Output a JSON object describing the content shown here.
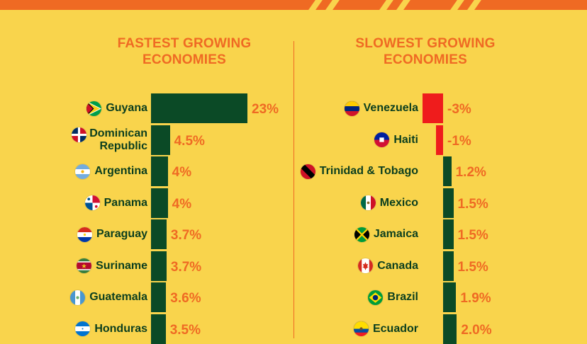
{
  "colors": {
    "background": "#f9d44c",
    "accent": "#ef6a23",
    "bar_positive": "#0b4a26",
    "bar_negative": "#ef1c1c",
    "label_text": "#0b3e1e"
  },
  "chart_data": [
    {
      "type": "bar",
      "orientation": "horizontal",
      "title_lines": [
        "FASTEST GROWING",
        "ECONOMIES"
      ],
      "unit": "%",
      "categories": [
        "Guyana",
        "Dominican Republic",
        "Argentina",
        "Panama",
        "Paraguay",
        "Suriname",
        "Guatemala",
        "Honduras"
      ],
      "label_lines": [
        [
          "Guyana"
        ],
        [
          "Dominican",
          "Republic"
        ],
        [
          "Argentina"
        ],
        [
          "Panama"
        ],
        [
          "Paraguay"
        ],
        [
          "Suriname"
        ],
        [
          "Guatemala"
        ],
        [
          "Honduras"
        ]
      ],
      "value_labels": [
        "23%",
        "4.5%",
        "4%",
        "4%",
        "3.7%",
        "3.7%",
        "3.6%",
        "3.5%"
      ],
      "values": [
        23,
        4.5,
        4,
        4,
        3.7,
        3.7,
        3.6,
        3.5
      ],
      "flag_icons": [
        "guyana-flag-icon",
        "dominican-republic-flag-icon",
        "argentina-flag-icon",
        "panama-flag-icon",
        "paraguay-flag-icon",
        "suriname-flag-icon",
        "guatemala-flag-icon",
        "honduras-flag-icon"
      ]
    },
    {
      "type": "bar",
      "orientation": "horizontal",
      "title_lines": [
        "SLOWEST GROWING",
        "ECONOMIES"
      ],
      "unit": "%",
      "categories": [
        "Venezuela",
        "Haiti",
        "Trinidad & Tobago",
        "Mexico",
        "Jamaica",
        "Canada",
        "Brazil",
        "Ecuador"
      ],
      "label_lines": [
        [
          "Venezuela"
        ],
        [
          "Haiti"
        ],
        [
          "Trinidad & Tobago"
        ],
        [
          "Mexico"
        ],
        [
          "Jamaica"
        ],
        [
          "Canada"
        ],
        [
          "Brazil"
        ],
        [
          "Ecuador"
        ]
      ],
      "value_labels": [
        "-3%",
        "-1%",
        "1.2%",
        "1.5%",
        "1.5%",
        "1.5%",
        "1.9%",
        "2.0%"
      ],
      "values": [
        -3,
        -1,
        1.2,
        1.5,
        1.5,
        1.5,
        1.9,
        2.0
      ],
      "flag_icons": [
        "venezuela-flag-icon",
        "haiti-flag-icon",
        "trinidad-and-tobago-flag-icon",
        "mexico-flag-icon",
        "jamaica-flag-icon",
        "canada-flag-icon",
        "brazil-flag-icon",
        "ecuador-flag-icon"
      ]
    }
  ]
}
